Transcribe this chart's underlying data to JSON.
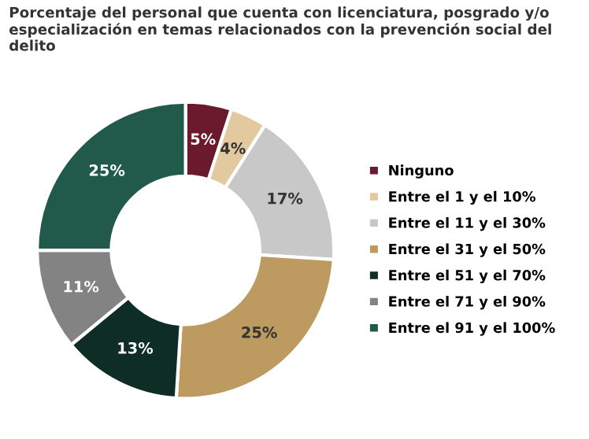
{
  "chart_data": {
    "type": "donut",
    "title": "Porcentaje del personal que cuenta con licenciatura, posgrado y/o\nespecialización en temas relacionados con la prevención social del\ndelito",
    "categories": [
      "Ninguno",
      "Entre el 1 y el 10%",
      "Entre el 11 y el 30%",
      "Entre el 31 y el 50%",
      "Entre el 51 y el 70%",
      "Entre el 71 y el 90%",
      "Entre el 91 y el 100%"
    ],
    "values": [
      5,
      4,
      17,
      25,
      13,
      11,
      25
    ],
    "colors": [
      "#6b1a2e",
      "#e3c9a0",
      "#c8c8c8",
      "#bc9a60",
      "#0e2d24",
      "#838383",
      "#215a4a"
    ],
    "value_labels": [
      "5%",
      "4%",
      "17%",
      "25%",
      "13%",
      "11%",
      "25%"
    ],
    "legend": "right"
  }
}
